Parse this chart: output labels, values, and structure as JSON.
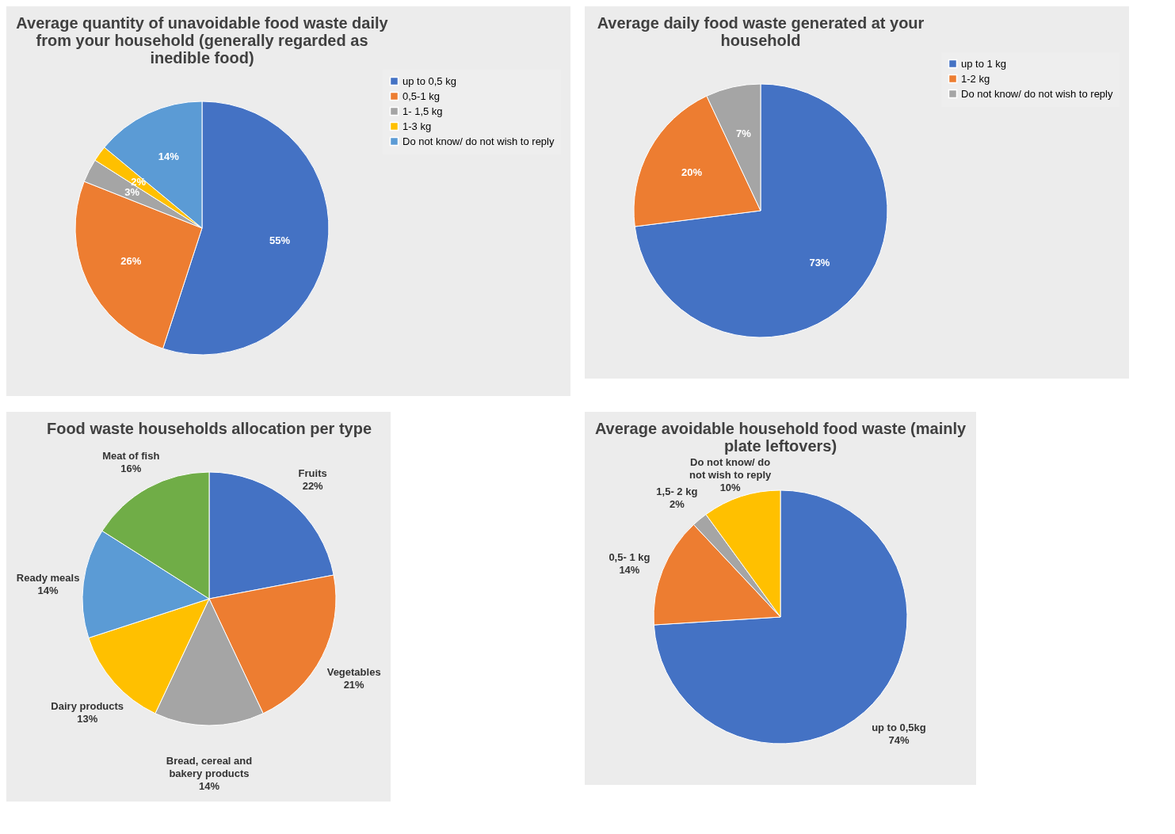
{
  "chart_data": [
    {
      "type": "pie",
      "title": "Average quantity of unavoidable food waste daily from your household (generally regarded as inedible food)",
      "categories": [
        "up to 0,5 kg",
        "0,5-1 kg",
        "1- 1,5 kg",
        "1-3 kg",
        "Do not know/ do not wish to reply"
      ],
      "values": [
        55,
        26,
        3,
        2,
        14
      ],
      "colors": [
        "#4472c4",
        "#ed7d31",
        "#a5a5a5",
        "#ffc000",
        "#5b9bd5"
      ],
      "value_labels": [
        "55%",
        "26%",
        "3%",
        "2%",
        "14%"
      ],
      "legend": "right"
    },
    {
      "type": "pie",
      "title": "Average daily food waste generated at your household",
      "categories": [
        "up to 1 kg",
        "1-2 kg",
        "Do not know/ do not wish to reply"
      ],
      "values": [
        73,
        20,
        7
      ],
      "colors": [
        "#4472c4",
        "#ed7d31",
        "#a5a5a5"
      ],
      "value_labels": [
        "73%",
        "20%",
        "7%"
      ],
      "legend": "right"
    },
    {
      "type": "pie",
      "title": "Food waste households allocation per type",
      "categories": [
        "Fruits",
        "Vegetables",
        "Bread, cereal and bakery products",
        "Dairy products",
        "Ready meals",
        "Meat of fish"
      ],
      "values": [
        22,
        21,
        14,
        13,
        14,
        16
      ],
      "colors": [
        "#4472c4",
        "#ed7d31",
        "#a5a5a5",
        "#ffc000",
        "#5b9bd5",
        "#70ad47"
      ],
      "value_labels": [
        "22%",
        "21%",
        "14%",
        "13%",
        "14%",
        "16%"
      ]
    },
    {
      "type": "pie",
      "title": "Average avoidable household food waste (mainly plate leftovers)",
      "categories": [
        "up to 0,5kg",
        "0,5- 1 kg",
        "1,5- 2 kg",
        "Do not know/ do not wish to reply"
      ],
      "values": [
        74,
        14,
        2,
        10
      ],
      "colors": [
        "#4472c4",
        "#ed7d31",
        "#a5a5a5",
        "#ffc000"
      ],
      "value_labels": [
        "74%",
        "14%",
        "2%",
        "10%"
      ]
    }
  ]
}
